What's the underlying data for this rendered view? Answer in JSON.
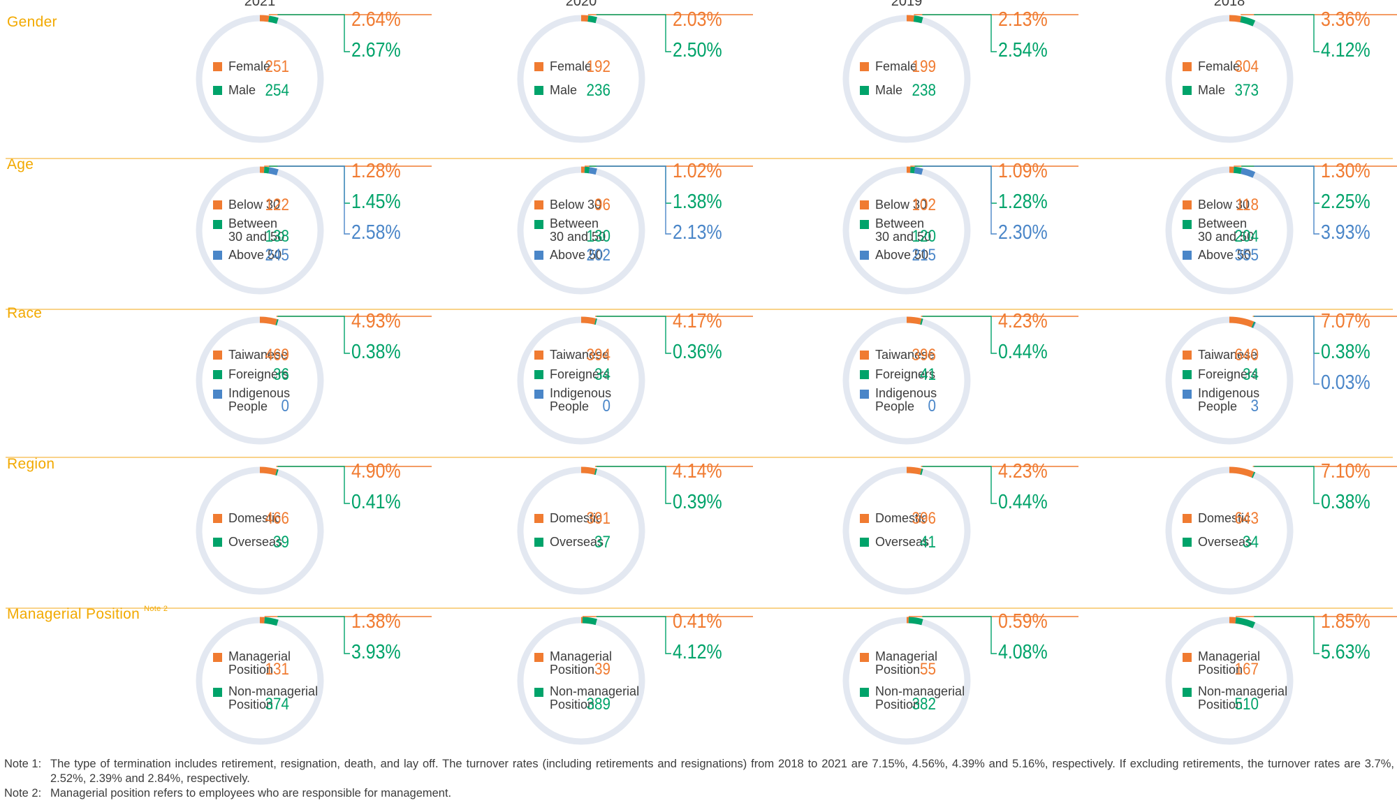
{
  "colors": {
    "orange": "#f07b31",
    "green": "#00a36a",
    "blue": "#4a86c8",
    "ring": "#e3e8f1",
    "label": "#f2a900"
  },
  "years": [
    "2021",
    "2020",
    "2019",
    "2018"
  ],
  "chart_data": [
    {
      "type": "donut",
      "row": "Gender",
      "year": "2021",
      "rates": [
        {
          "label": "Female",
          "value": 2.64,
          "display": "2.64%"
        },
        {
          "label": "Male",
          "value": 2.67,
          "display": "2.67%"
        }
      ],
      "counts": [
        {
          "label": "Female",
          "value": 251
        },
        {
          "label": "Male",
          "value": 254
        }
      ]
    },
    {
      "type": "donut",
      "row": "Gender",
      "year": "2020",
      "rates": [
        {
          "label": "Female",
          "value": 2.03,
          "display": "2.03%"
        },
        {
          "label": "Male",
          "value": 2.5,
          "display": "2.50%"
        }
      ],
      "counts": [
        {
          "label": "Female",
          "value": 192
        },
        {
          "label": "Male",
          "value": 236
        }
      ]
    },
    {
      "type": "donut",
      "row": "Gender",
      "year": "2019",
      "rates": [
        {
          "label": "Female",
          "value": 2.13,
          "display": "2.13%"
        },
        {
          "label": "Male",
          "value": 2.54,
          "display": "2.54%"
        }
      ],
      "counts": [
        {
          "label": "Female",
          "value": 199
        },
        {
          "label": "Male",
          "value": 238
        }
      ]
    },
    {
      "type": "donut",
      "row": "Gender",
      "year": "2018",
      "rates": [
        {
          "label": "Female",
          "value": 3.36,
          "display": "3.36%"
        },
        {
          "label": "Male",
          "value": 4.12,
          "display": "4.12%"
        }
      ],
      "counts": [
        {
          "label": "Female",
          "value": 304
        },
        {
          "label": "Male",
          "value": 373
        }
      ]
    },
    {
      "type": "donut",
      "row": "Age",
      "year": "2021",
      "rates": [
        {
          "label": "Below 30",
          "value": 1.28,
          "display": "1.28%"
        },
        {
          "label": "Between 30 and 50",
          "value": 1.45,
          "display": "1.45%"
        },
        {
          "label": "Above 50",
          "value": 2.58,
          "display": "2.58%"
        }
      ],
      "counts": [
        {
          "label": "Below 30",
          "value": 122
        },
        {
          "label": "Between 30 and 50",
          "value": 138
        },
        {
          "label": "Above 50",
          "value": 245
        }
      ]
    },
    {
      "type": "donut",
      "row": "Age",
      "year": "2020",
      "rates": [
        {
          "label": "Below 30",
          "value": 1.02,
          "display": "1.02%"
        },
        {
          "label": "Between 30 and 50",
          "value": 1.38,
          "display": "1.38%"
        },
        {
          "label": "Above 50",
          "value": 2.13,
          "display": "2.13%"
        }
      ],
      "counts": [
        {
          "label": "Below 30",
          "value": 96
        },
        {
          "label": "Between 30 and 50",
          "value": 130
        },
        {
          "label": "Above 50",
          "value": 202
        }
      ]
    },
    {
      "type": "donut",
      "row": "Age",
      "year": "2019",
      "rates": [
        {
          "label": "Below 30",
          "value": 1.09,
          "display": "1.09%"
        },
        {
          "label": "Between 30 and 50",
          "value": 1.28,
          "display": "1.28%"
        },
        {
          "label": "Above 50",
          "value": 2.3,
          "display": "2.30%"
        }
      ],
      "counts": [
        {
          "label": "Below 30",
          "value": 102
        },
        {
          "label": "Between 30 and 50",
          "value": 120
        },
        {
          "label": "Above 50",
          "value": 215
        }
      ]
    },
    {
      "type": "donut",
      "row": "Age",
      "year": "2018",
      "rates": [
        {
          "label": "Below 30",
          "value": 1.3,
          "display": "1.30%"
        },
        {
          "label": "Between 30 and 50",
          "value": 2.25,
          "display": "2.25%"
        },
        {
          "label": "Above 50",
          "value": 3.93,
          "display": "3.93%"
        }
      ],
      "counts": [
        {
          "label": "Below 30",
          "value": 118
        },
        {
          "label": "Between 30 and 50",
          "value": 204
        },
        {
          "label": "Above 50",
          "value": 355
        }
      ]
    },
    {
      "type": "donut",
      "row": "Race",
      "year": "2021",
      "rates": [
        {
          "label": "Taiwanese",
          "value": 4.93,
          "display": "4.93%"
        },
        {
          "label": "Foreigners",
          "value": 0.38,
          "display": "0.38%"
        }
      ],
      "counts": [
        {
          "label": "Taiwanese",
          "value": 469
        },
        {
          "label": "Foreigners",
          "value": 36
        },
        {
          "label": "Indigenous People",
          "value": 0
        }
      ]
    },
    {
      "type": "donut",
      "row": "Race",
      "year": "2020",
      "rates": [
        {
          "label": "Taiwanese",
          "value": 4.17,
          "display": "4.17%"
        },
        {
          "label": "Foreigners",
          "value": 0.36,
          "display": "0.36%"
        }
      ],
      "counts": [
        {
          "label": "Taiwanese",
          "value": 394
        },
        {
          "label": "Foreigners",
          "value": 34
        },
        {
          "label": "Indigenous People",
          "value": 0
        }
      ]
    },
    {
      "type": "donut",
      "row": "Race",
      "year": "2019",
      "rates": [
        {
          "label": "Taiwanese",
          "value": 4.23,
          "display": "4.23%"
        },
        {
          "label": "Foreigners",
          "value": 0.44,
          "display": "0.44%"
        }
      ],
      "counts": [
        {
          "label": "Taiwanese",
          "value": 396
        },
        {
          "label": "Foreigners",
          "value": 41
        },
        {
          "label": "Indigenous People",
          "value": 0
        }
      ]
    },
    {
      "type": "donut",
      "row": "Race",
      "year": "2018",
      "rates": [
        {
          "label": "Taiwanese",
          "value": 7.07,
          "display": "7.07%"
        },
        {
          "label": "Foreigners",
          "value": 0.38,
          "display": "0.38%"
        },
        {
          "label": "Indigenous People",
          "value": 0.03,
          "display": "0.03%"
        }
      ],
      "counts": [
        {
          "label": "Taiwanese",
          "value": 640
        },
        {
          "label": "Foreigners",
          "value": 34
        },
        {
          "label": "Indigenous People",
          "value": 3
        }
      ]
    },
    {
      "type": "donut",
      "row": "Region",
      "year": "2021",
      "rates": [
        {
          "label": "Domestic",
          "value": 4.9,
          "display": "4.90%"
        },
        {
          "label": "Overseas",
          "value": 0.41,
          "display": "0.41%"
        }
      ],
      "counts": [
        {
          "label": "Domestic",
          "value": 466
        },
        {
          "label": "Overseas",
          "value": 39
        }
      ]
    },
    {
      "type": "donut",
      "row": "Region",
      "year": "2020",
      "rates": [
        {
          "label": "Domestic",
          "value": 4.14,
          "display": "4.14%"
        },
        {
          "label": "Overseas",
          "value": 0.39,
          "display": "0.39%"
        }
      ],
      "counts": [
        {
          "label": "Domestic",
          "value": 391
        },
        {
          "label": "Overseas",
          "value": 37
        }
      ]
    },
    {
      "type": "donut",
      "row": "Region",
      "year": "2019",
      "rates": [
        {
          "label": "Domestic",
          "value": 4.23,
          "display": "4.23%"
        },
        {
          "label": "Overseas",
          "value": 0.44,
          "display": "0.44%"
        }
      ],
      "counts": [
        {
          "label": "Domestic",
          "value": 396
        },
        {
          "label": "Overseas",
          "value": 41
        }
      ]
    },
    {
      "type": "donut",
      "row": "Region",
      "year": "2018",
      "rates": [
        {
          "label": "Domestic",
          "value": 7.1,
          "display": "7.10%"
        },
        {
          "label": "Overseas",
          "value": 0.38,
          "display": "0.38%"
        }
      ],
      "counts": [
        {
          "label": "Domestic",
          "value": 643
        },
        {
          "label": "Overseas",
          "value": 34
        }
      ]
    },
    {
      "type": "donut",
      "row": "Managerial Position",
      "year": "2021",
      "rates": [
        {
          "label": "Managerial Position",
          "value": 1.38,
          "display": "1.38%"
        },
        {
          "label": "Non-managerial Position",
          "value": 3.93,
          "display": "3.93%"
        }
      ],
      "counts": [
        {
          "label": "Managerial Position",
          "value": 131
        },
        {
          "label": "Non-managerial Position",
          "value": 374
        }
      ]
    },
    {
      "type": "donut",
      "row": "Managerial Position",
      "year": "2020",
      "rates": [
        {
          "label": "Managerial Position",
          "value": 0.41,
          "display": "0.41%"
        },
        {
          "label": "Non-managerial Position",
          "value": 4.12,
          "display": "4.12%"
        }
      ],
      "counts": [
        {
          "label": "Managerial Position",
          "value": 39
        },
        {
          "label": "Non-managerial Position",
          "value": 389
        }
      ]
    },
    {
      "type": "donut",
      "row": "Managerial Position",
      "year": "2019",
      "rates": [
        {
          "label": "Managerial Position",
          "value": 0.59,
          "display": "0.59%"
        },
        {
          "label": "Non-managerial Position",
          "value": 4.08,
          "display": "4.08%"
        }
      ],
      "counts": [
        {
          "label": "Managerial Position",
          "value": 55
        },
        {
          "label": "Non-managerial Position",
          "value": 382
        }
      ]
    },
    {
      "type": "donut",
      "row": "Managerial Position",
      "year": "2018",
      "rates": [
        {
          "label": "Managerial Position",
          "value": 1.85,
          "display": "1.85%"
        },
        {
          "label": "Non-managerial Position",
          "value": 5.63,
          "display": "5.63%"
        }
      ],
      "counts": [
        {
          "label": "Managerial Position",
          "value": 167
        },
        {
          "label": "Non-managerial Position",
          "value": 510
        }
      ]
    }
  ],
  "rows": [
    {
      "label": "Gender",
      "note": "",
      "legend": [
        [
          "Female"
        ],
        [
          "Male"
        ]
      ]
    },
    {
      "label": "Age",
      "note": "",
      "legend": [
        [
          "Below 30"
        ],
        [
          "Between",
          "30 and 50"
        ],
        [
          "Above 50"
        ]
      ]
    },
    {
      "label": "Race",
      "note": "",
      "legend": [
        [
          "Taiwanese"
        ],
        [
          "Foreigners"
        ],
        [
          "Indigenous",
          "People"
        ]
      ]
    },
    {
      "label": "Region",
      "note": "",
      "legend": [
        [
          "Domestic"
        ],
        [
          "Overseas"
        ]
      ]
    },
    {
      "label": "Managerial Position",
      "note": "Note 2",
      "legend": [
        [
          "Managerial",
          "Position"
        ],
        [
          "Non-managerial",
          "Position"
        ]
      ]
    }
  ],
  "notes": [
    {
      "key": "Note 1:",
      "text": "The type of termination includes retirement, resignation, death, and lay off. The turnover rates (including retirements and resignations) from 2018 to 2021 are 7.15%, 4.56%, 4.39% and 5.16%, respectively. If excluding retirements, the turnover rates are 3.7%, 2.52%, 2.39% and 2.84%, respectively."
    },
    {
      "key": "Note 2:",
      "text": "Managerial position refers to employees who are responsible for management."
    }
  ]
}
